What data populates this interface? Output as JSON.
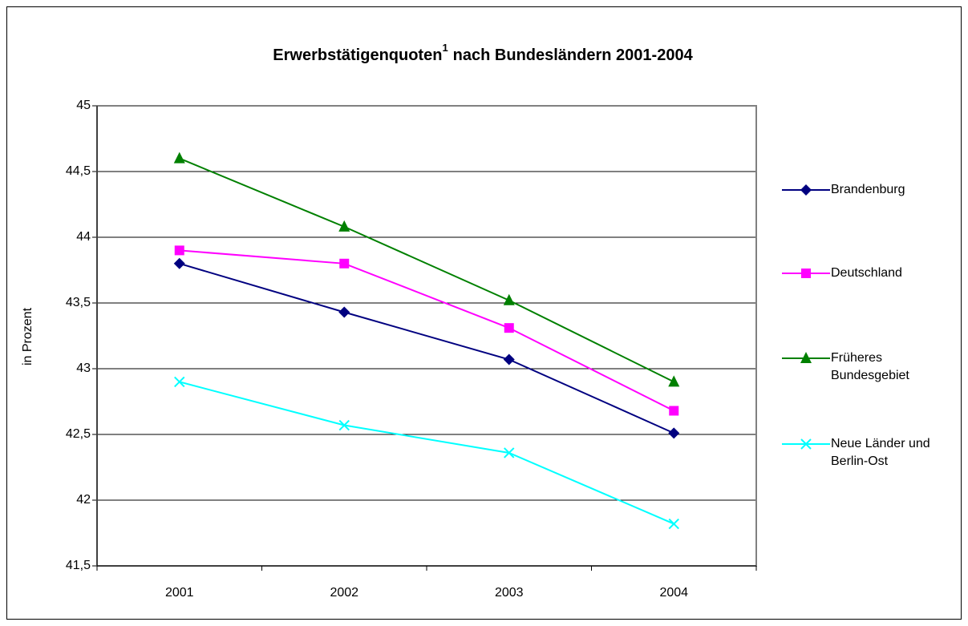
{
  "chart_data": {
    "type": "line",
    "title": "Erwerbstätigenquoten",
    "title_superscript": "1",
    "title_continued": "nach Bundesländern 2001-2004",
    "y_label": "in Prozent",
    "categories": [
      "2001",
      "2002",
      "2003",
      "2004"
    ],
    "series": [
      {
        "name": "Brandenburg",
        "color": "#000080",
        "marker": "diamond",
        "values": [
          43.8,
          43.43,
          43.07,
          42.51
        ]
      },
      {
        "name": "Deutschland",
        "color": "#ff00ff",
        "marker": "square",
        "values": [
          43.9,
          43.8,
          43.31,
          42.68
        ]
      },
      {
        "name": "Früheres Bundesgebiet",
        "color": "#008000",
        "marker": "triangle",
        "values": [
          44.6,
          44.08,
          43.52,
          42.9
        ]
      },
      {
        "name": "Neue Länder und Berlin-Ost",
        "color": "#00ffff",
        "marker": "x",
        "values": [
          42.9,
          42.57,
          42.36,
          41.82
        ]
      }
    ],
    "ylim": [
      41.5,
      45
    ],
    "yticks": [
      {
        "value": 41.5,
        "label": "41,5"
      },
      42,
      {
        "value": 42.5,
        "label": "42,5"
      },
      43,
      {
        "value": 43.5,
        "label": "43,5"
      },
      44,
      {
        "value": 44.5,
        "label": "44,5"
      },
      45
    ],
    "grid": true,
    "legend": "right"
  }
}
